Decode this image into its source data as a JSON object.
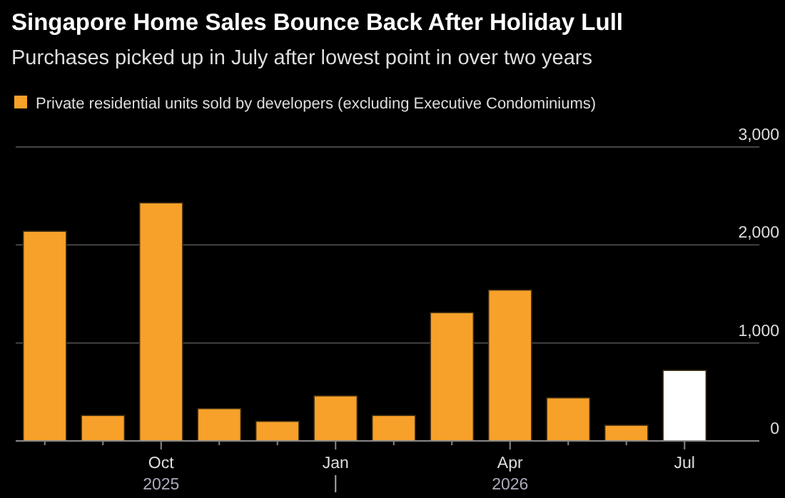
{
  "chart_data": {
    "type": "bar",
    "title": "Singapore Home Sales Bounce Back After Holiday Lull",
    "subtitle": "Purchases picked up in July after lowest point in over two years",
    "categories": [
      null,
      null,
      "Oct",
      null,
      null,
      "Jan",
      null,
      null,
      "Apr",
      null,
      null,
      "Jul"
    ],
    "series": [
      {
        "name": "Private residential units sold by developers (excluding Executive Condominiums)",
        "color": "#f7a12a",
        "colors": [
          "#f7a12a",
          "#f7a12a",
          "#f7a12a",
          "#f7a12a",
          "#f7a12a",
          "#f7a12a",
          "#f7a12a",
          "#f7a12a",
          "#f7a12a",
          "#f7a12a",
          "#f7a12a",
          "#ffffff"
        ],
        "values": [
          2140,
          260,
          2430,
          330,
          200,
          460,
          260,
          1310,
          1540,
          440,
          160,
          720
        ]
      }
    ],
    "annotations": [
      "2025",
      "2026"
    ],
    "ylim": [
      0,
      3000
    ],
    "yticks": [
      {
        "value": 0,
        "label": "0"
      },
      {
        "value": 1000,
        "label": "1,000"
      },
      {
        "value": 2000,
        "label": "2,000"
      },
      {
        "value": 3000,
        "label": "3,000"
      }
    ],
    "grid": "y",
    "legend": "top left"
  }
}
